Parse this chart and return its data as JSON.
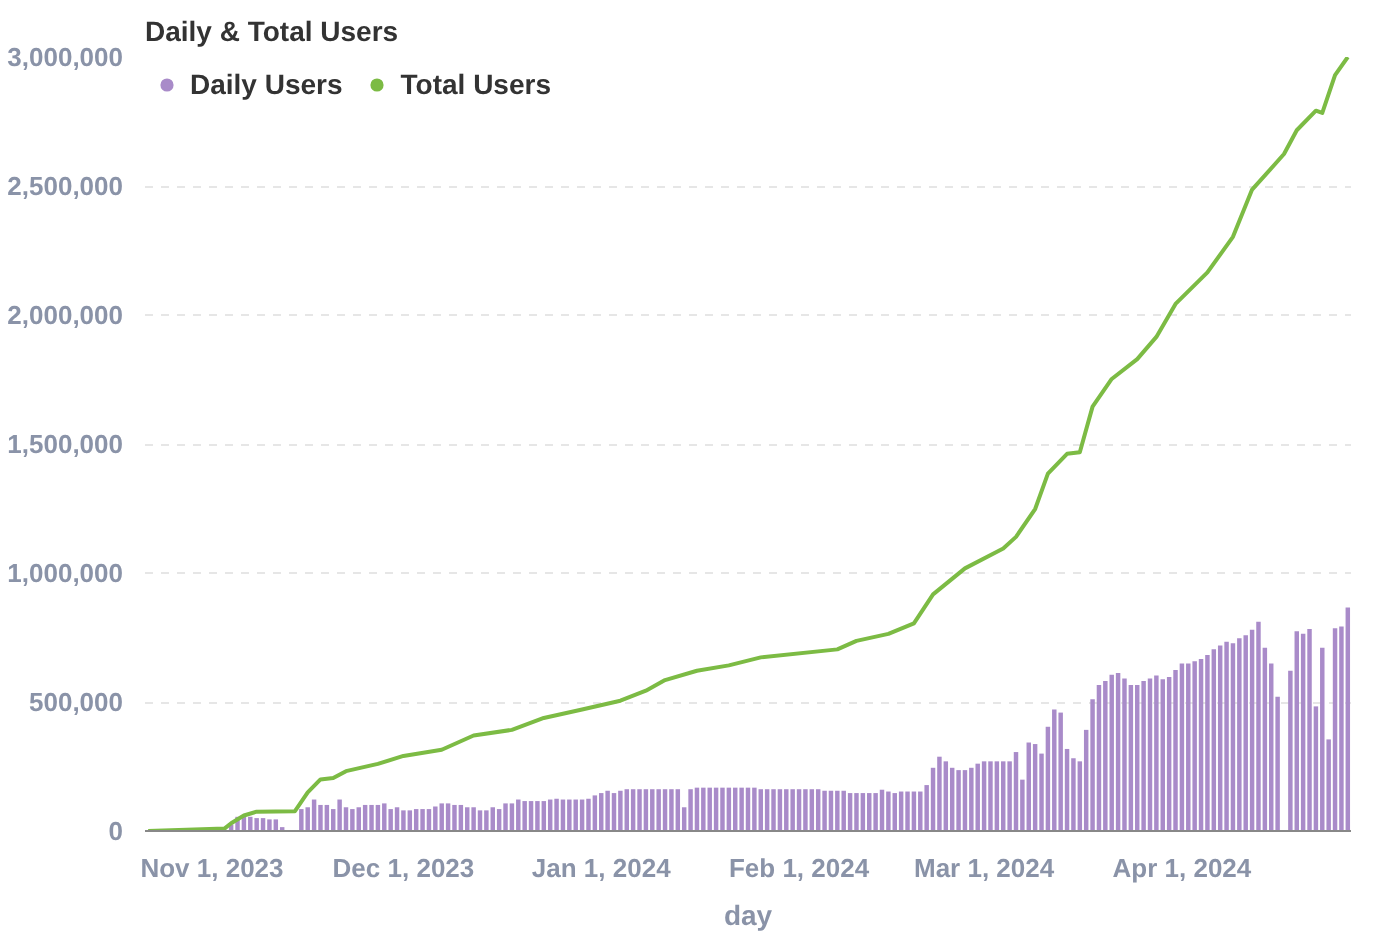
{
  "chart_data": {
    "type": "bar",
    "title": "Daily & Total Users",
    "xlabel": "day",
    "x": [
      "2023-10-22",
      "2023-10-23",
      "2023-10-24",
      "2023-10-25",
      "2023-10-26",
      "2023-10-27",
      "2023-10-28",
      "2023-10-29",
      "2023-10-30",
      "2023-10-31",
      "2023-11-01",
      "2023-11-02",
      "2023-11-03",
      "2023-11-04",
      "2023-11-05",
      "2023-11-06",
      "2023-11-07",
      "2023-11-08",
      "2023-11-09",
      "2023-11-10",
      "2023-11-11",
      "2023-11-12",
      "2023-11-13",
      "2023-11-14",
      "2023-11-15",
      "2023-11-16",
      "2023-11-17",
      "2023-11-18",
      "2023-11-19",
      "2023-11-20",
      "2023-11-21",
      "2023-11-22",
      "2023-11-23",
      "2023-11-24",
      "2023-11-25",
      "2023-11-26",
      "2023-11-27",
      "2023-11-28",
      "2023-11-29",
      "2023-11-30",
      "2023-12-01",
      "2023-12-02",
      "2023-12-03",
      "2023-12-04",
      "2023-12-05",
      "2023-12-06",
      "2023-12-07",
      "2023-12-08",
      "2023-12-09",
      "2023-12-10",
      "2023-12-11",
      "2023-12-12",
      "2023-12-13",
      "2023-12-14",
      "2023-12-15",
      "2023-12-16",
      "2023-12-17",
      "2023-12-18",
      "2023-12-19",
      "2023-12-20",
      "2023-12-21",
      "2023-12-22",
      "2023-12-23",
      "2023-12-24",
      "2023-12-25",
      "2023-12-26",
      "2023-12-27",
      "2023-12-28",
      "2023-12-29",
      "2023-12-30",
      "2023-12-31",
      "2024-01-01",
      "2024-01-02",
      "2024-01-03",
      "2024-01-04",
      "2024-01-05",
      "2024-01-06",
      "2024-01-07",
      "2024-01-08",
      "2024-01-09",
      "2024-01-10",
      "2024-01-11",
      "2024-01-12",
      "2024-01-13",
      "2024-01-14",
      "2024-01-15",
      "2024-01-16",
      "2024-01-17",
      "2024-01-18",
      "2024-01-19",
      "2024-01-20",
      "2024-01-21",
      "2024-01-22",
      "2024-01-23",
      "2024-01-24",
      "2024-01-25",
      "2024-01-26",
      "2024-01-27",
      "2024-01-28",
      "2024-01-29",
      "2024-01-30",
      "2024-01-31",
      "2024-02-01",
      "2024-02-02",
      "2024-02-03",
      "2024-02-04",
      "2024-02-05",
      "2024-02-06",
      "2024-02-07",
      "2024-02-08",
      "2024-02-09",
      "2024-02-10",
      "2024-02-11",
      "2024-02-12",
      "2024-02-13",
      "2024-02-14",
      "2024-02-15",
      "2024-02-16",
      "2024-02-17",
      "2024-02-18",
      "2024-02-19",
      "2024-02-20",
      "2024-02-21",
      "2024-02-22",
      "2024-02-23",
      "2024-02-24",
      "2024-02-25",
      "2024-02-26",
      "2024-02-27",
      "2024-02-28",
      "2024-02-29",
      "2024-03-01",
      "2024-03-02",
      "2024-03-03",
      "2024-03-04",
      "2024-03-05",
      "2024-03-06",
      "2024-03-07",
      "2024-03-08",
      "2024-03-09",
      "2024-03-10",
      "2024-03-11",
      "2024-03-12",
      "2024-03-13",
      "2024-03-14",
      "2024-03-15",
      "2024-03-16",
      "2024-03-17",
      "2024-03-18",
      "2024-03-19",
      "2024-03-20",
      "2024-03-21",
      "2024-03-22",
      "2024-03-23",
      "2024-03-24",
      "2024-03-25",
      "2024-03-26",
      "2024-03-27",
      "2024-03-28",
      "2024-03-29",
      "2024-03-30",
      "2024-03-31",
      "2024-04-01",
      "2024-04-02",
      "2024-04-03",
      "2024-04-04",
      "2024-04-05",
      "2024-04-06",
      "2024-04-07",
      "2024-04-08",
      "2024-04-09",
      "2024-04-10",
      "2024-04-11",
      "2024-04-12",
      "2024-04-13",
      "2024-04-14",
      "2024-04-15",
      "2024-04-16",
      "2024-04-17",
      "2024-04-18",
      "2024-04-19",
      "2024-04-20",
      "2024-04-21",
      "2024-04-22",
      "2024-04-23",
      "2024-04-24",
      "2024-04-25",
      "2024-04-26",
      "2024-04-27"
    ],
    "series": [
      {
        "name": "Daily Users",
        "color": "#a98bc9",
        "values": [
          0,
          0,
          0,
          0,
          0,
          0,
          0,
          0,
          0,
          0,
          0,
          0,
          0,
          25000,
          55000,
          60000,
          55000,
          50000,
          50000,
          45000,
          45000,
          15000,
          0,
          0,
          85000,
          92000,
          122000,
          101000,
          101000,
          85000,
          122000,
          92000,
          85000,
          92000,
          101000,
          101000,
          101000,
          107000,
          85000,
          92000,
          80000,
          80000,
          85000,
          85000,
          85000,
          95000,
          107000,
          107000,
          101000,
          101000,
          92000,
          92000,
          80000,
          80000,
          92000,
          85000,
          107000,
          107000,
          122000,
          116000,
          116000,
          116000,
          116000,
          122000,
          125000,
          122000,
          122000,
          122000,
          122000,
          125000,
          138000,
          147000,
          156000,
          147000,
          156000,
          162000,
          162000,
          162000,
          162000,
          162000,
          162000,
          162000,
          162000,
          162000,
          92000,
          162000,
          168000,
          168000,
          168000,
          168000,
          168000,
          168000,
          168000,
          168000,
          168000,
          168000,
          162000,
          162000,
          162000,
          162000,
          162000,
          162000,
          162000,
          162000,
          162000,
          162000,
          156000,
          156000,
          156000,
          156000,
          147000,
          147000,
          147000,
          147000,
          147000,
          160000,
          153000,
          147000,
          153000,
          153000,
          153000,
          153000,
          178000,
          245000,
          288000,
          270000,
          245000,
          236000,
          236000,
          245000,
          261000,
          270000,
          270000,
          270000,
          270000,
          270000,
          306000,
          199000,
          343000,
          337000,
          300000,
          404000,
          471000,
          459000,
          318000,
          282000,
          270000,
          392000,
          511000,
          566000,
          581000,
          606000,
          612000,
          591000,
          566000,
          566000,
          581000,
          591000,
          603000,
          588000,
          597000,
          624000,
          649000,
          649000,
          658000,
          667000,
          682000,
          704000,
          719000,
          734000,
          728000,
          747000,
          759000,
          780000,
          811000,
          710000,
          649000,
          520000,
          null,
          621000,
          774000,
          765000,
          783000,
          483000,
          710000,
          355000,
          786000,
          793000,
          866000
        ]
      },
      {
        "name": "Total Users",
        "type": "line",
        "color": "#7cbb44",
        "x": [
          "2023-10-22",
          "2023-11-03",
          "2023-11-04",
          "2023-11-06",
          "2023-11-08",
          "2023-11-14",
          "2023-11-16",
          "2023-11-18",
          "2023-11-20",
          "2023-11-22",
          "2023-11-27",
          "2023-12-01",
          "2023-12-07",
          "2023-12-12",
          "2023-12-18",
          "2023-12-23",
          "2023-12-29",
          "2024-01-04",
          "2024-01-08",
          "2024-01-11",
          "2024-01-16",
          "2024-01-21",
          "2024-01-26",
          "2024-02-07",
          "2024-02-10",
          "2024-02-15",
          "2024-02-19",
          "2024-02-22",
          "2024-02-27",
          "2024-03-04",
          "2024-03-06",
          "2024-03-09",
          "2024-03-11",
          "2024-03-14",
          "2024-03-16",
          "2024-03-18",
          "2024-03-21",
          "2024-03-25",
          "2024-03-28",
          "2024-03-31",
          "2024-04-05",
          "2024-04-09",
          "2024-04-12",
          "2024-04-17",
          "2024-04-19",
          "2024-04-22",
          "2024-04-23",
          "2024-04-25",
          "2024-04-27"
        ],
        "values": [
          0,
          10000,
          30000,
          60000,
          75000,
          77000,
          150000,
          200000,
          205000,
          232000,
          260000,
          291000,
          315000,
          370000,
          392000,
          438000,
          471000,
          505000,
          544000,
          585000,
          621000,
          642000,
          673000,
          704000,
          737000,
          764000,
          805000,
          917000,
          1018000,
          1095000,
          1140000,
          1248000,
          1385000,
          1462000,
          1468000,
          1645000,
          1752000,
          1829000,
          1915000,
          2043000,
          2165000,
          2303000,
          2486000,
          2624000,
          2716000,
          2792000,
          2783000,
          2930000,
          3000000
        ]
      }
    ],
    "xlim": [
      "2023-10-21T12:00",
      "2024-04-27T12:00"
    ],
    "xticks": [
      {
        "value": "2023-11-01",
        "label": "Nov 1, 2023"
      },
      {
        "value": "2023-12-01",
        "label": "Dec 1, 2023"
      },
      {
        "value": "2024-01-01",
        "label": "Jan 1, 2024"
      },
      {
        "value": "2024-02-01",
        "label": "Feb 1, 2024"
      },
      {
        "value": "2024-03-01",
        "label": "Mar 1, 2024"
      },
      {
        "value": "2024-04-01",
        "label": "Apr 1, 2024"
      }
    ],
    "ylim": [
      0,
      3000000
    ],
    "yticks": [
      0,
      {
        "value": 500000,
        "label": "500,000"
      },
      {
        "value": 1000000,
        "label": "1,000,000"
      },
      {
        "value": 1500000,
        "label": "1,500,000"
      },
      {
        "value": 2000000,
        "label": "2,000,000"
      },
      {
        "value": 2500000,
        "label": "2,500,000"
      },
      {
        "value": 3000000,
        "label": "3,000,000"
      }
    ],
    "grid": "y",
    "legend": "top left",
    "marker": "none"
  }
}
